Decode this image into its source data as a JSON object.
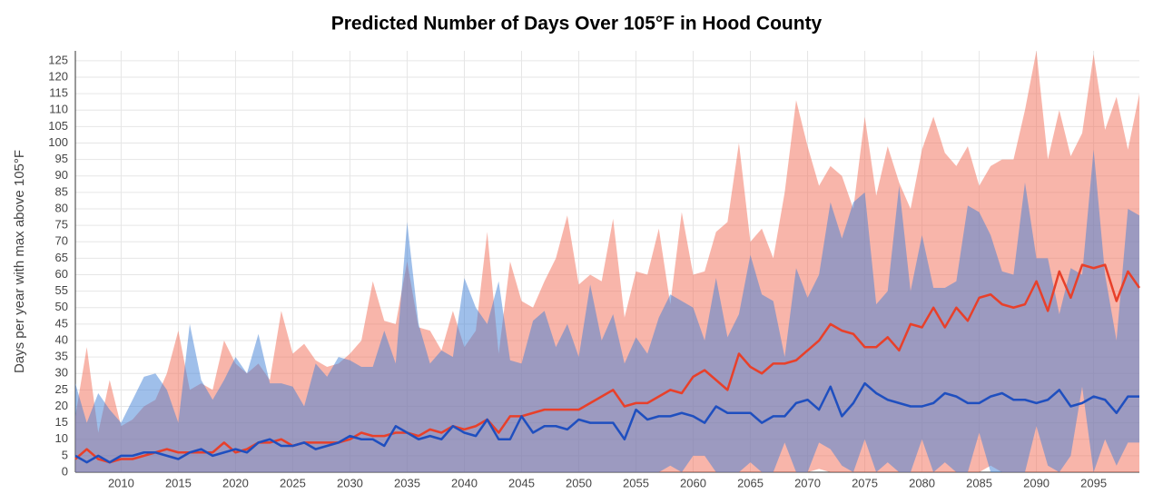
{
  "chart_data": {
    "type": "line",
    "title": "Predicted Number of Days Over 105°F in Hood County",
    "y_label": "Days per year with max above 105°F",
    "x": [
      2006,
      2007,
      2008,
      2009,
      2010,
      2011,
      2012,
      2013,
      2014,
      2015,
      2016,
      2017,
      2018,
      2019,
      2020,
      2021,
      2022,
      2023,
      2024,
      2025,
      2026,
      2027,
      2028,
      2029,
      2030,
      2031,
      2032,
      2033,
      2034,
      2035,
      2036,
      2037,
      2038,
      2039,
      2040,
      2041,
      2042,
      2043,
      2044,
      2045,
      2046,
      2047,
      2048,
      2049,
      2050,
      2051,
      2052,
      2053,
      2054,
      2055,
      2056,
      2057,
      2058,
      2059,
      2060,
      2061,
      2062,
      2063,
      2064,
      2065,
      2066,
      2067,
      2068,
      2069,
      2070,
      2071,
      2072,
      2073,
      2074,
      2075,
      2076,
      2077,
      2078,
      2079,
      2080,
      2081,
      2082,
      2083,
      2084,
      2085,
      2086,
      2087,
      2088,
      2089,
      2090,
      2091,
      2092,
      2093,
      2094,
      2095,
      2096,
      2097,
      2098,
      2099
    ],
    "xlim": [
      2006,
      2099
    ],
    "xticks": [
      2010,
      2015,
      2020,
      2025,
      2030,
      2035,
      2040,
      2045,
      2050,
      2055,
      2060,
      2065,
      2070,
      2075,
      2080,
      2085,
      2090,
      2095
    ],
    "ylim": [
      0,
      128
    ],
    "yticks": [
      0,
      5,
      10,
      15,
      20,
      25,
      30,
      35,
      40,
      45,
      50,
      55,
      60,
      65,
      70,
      75,
      80,
      85,
      90,
      95,
      100,
      105,
      110,
      115,
      120,
      125
    ],
    "grid": true,
    "bands": [
      {
        "color": "#f26b55",
        "upper": [
          17,
          38,
          12,
          28,
          14,
          16,
          20,
          22,
          30,
          43,
          25,
          27,
          25,
          40,
          33,
          30,
          33,
          28,
          49,
          36,
          39,
          34,
          32,
          33,
          36,
          40,
          58,
          46,
          45,
          64,
          44,
          43,
          37,
          49,
          38,
          43,
          73,
          36,
          64,
          52,
          50,
          58,
          65,
          78,
          57,
          60,
          58,
          77,
          47,
          61,
          60,
          74,
          51,
          79,
          60,
          61,
          73,
          76,
          100,
          70,
          74,
          65,
          85,
          113,
          99,
          87,
          93,
          90,
          80,
          108,
          84,
          99,
          88,
          80,
          98,
          108,
          97,
          93,
          99,
          87,
          93,
          95,
          95,
          110,
          128,
          95,
          110,
          96,
          103,
          127,
          104,
          114,
          98,
          115
        ],
        "lower": [
          0,
          0,
          0,
          0,
          0,
          0,
          0,
          0,
          0,
          0,
          0,
          0,
          0,
          0,
          0,
          0,
          0,
          0,
          0,
          0,
          0,
          0,
          0,
          0,
          0,
          0,
          0,
          0,
          0,
          0,
          0,
          0,
          0,
          0,
          0,
          0,
          0,
          0,
          0,
          0,
          0,
          0,
          0,
          0,
          0,
          0,
          0,
          0,
          0,
          0,
          0,
          0,
          0,
          0,
          0,
          0,
          0,
          0,
          0,
          0,
          0,
          0,
          0,
          0,
          0,
          1,
          0,
          0,
          0,
          0,
          0,
          0,
          0,
          0,
          0,
          0,
          0,
          0,
          0,
          0,
          2,
          0,
          0,
          0,
          0,
          0,
          0,
          0,
          0,
          0,
          0,
          0,
          0,
          0
        ]
      },
      {
        "color": "#3f7fd6",
        "upper": [
          27,
          15,
          24,
          19,
          15,
          22,
          29,
          30,
          25,
          15,
          45,
          28,
          22,
          28,
          35,
          30,
          42,
          27,
          27,
          26,
          20,
          33,
          29,
          35,
          34,
          32,
          32,
          43,
          33,
          76,
          45,
          33,
          37,
          35,
          59,
          50,
          45,
          58,
          34,
          33,
          46,
          49,
          38,
          45,
          35,
          57,
          40,
          48,
          33,
          41,
          36,
          47,
          54,
          52,
          50,
          40,
          59,
          41,
          48,
          66,
          54,
          52,
          35,
          62,
          53,
          60,
          82,
          71,
          82,
          85,
          51,
          55,
          87,
          55,
          72,
          56,
          56,
          58,
          81,
          79,
          72,
          61,
          60,
          88,
          65,
          65,
          48,
          62,
          60,
          98,
          60,
          40,
          80,
          78
        ],
        "lower": [
          0,
          0,
          0,
          0,
          0,
          0,
          0,
          0,
          0,
          0,
          0,
          0,
          0,
          0,
          0,
          0,
          0,
          0,
          0,
          0,
          0,
          0,
          0,
          0,
          0,
          0,
          0,
          0,
          0,
          0,
          0,
          0,
          0,
          0,
          0,
          0,
          0,
          0,
          0,
          0,
          0,
          0,
          0,
          0,
          0,
          0,
          0,
          0,
          0,
          0,
          0,
          0,
          2,
          0,
          5,
          5,
          0,
          0,
          0,
          3,
          0,
          0,
          9,
          0,
          0,
          9,
          7,
          2,
          0,
          10,
          0,
          3,
          0,
          0,
          10,
          0,
          3,
          0,
          0,
          12,
          0,
          0,
          0,
          0,
          14,
          2,
          0,
          5,
          26,
          0,
          10,
          2,
          9,
          9
        ]
      }
    ],
    "series": [
      {
        "color": "#e8402a",
        "values": [
          4,
          7,
          4,
          3,
          4,
          4,
          5,
          6,
          7,
          6,
          6,
          6,
          6,
          9,
          6,
          7,
          9,
          9,
          10,
          8,
          9,
          9,
          9,
          9,
          10,
          12,
          11,
          11,
          12,
          12,
          11,
          13,
          12,
          14,
          13,
          14,
          16,
          12,
          17,
          17,
          18,
          19,
          19,
          19,
          19,
          21,
          23,
          25,
          20,
          21,
          21,
          23,
          25,
          24,
          29,
          31,
          28,
          25,
          36,
          32,
          30,
          33,
          33,
          34,
          37,
          40,
          45,
          43,
          42,
          38,
          38,
          41,
          37,
          45,
          44,
          50,
          44,
          50,
          46,
          53,
          54,
          51,
          50,
          51,
          58,
          49,
          61,
          53,
          63,
          62,
          63,
          52,
          61,
          56
        ]
      },
      {
        "color": "#1f4fbf",
        "values": [
          5,
          3,
          5,
          3,
          5,
          5,
          6,
          6,
          5,
          4,
          6,
          7,
          5,
          6,
          7,
          6,
          9,
          10,
          8,
          8,
          9,
          7,
          8,
          9,
          11,
          10,
          10,
          8,
          14,
          12,
          10,
          11,
          10,
          14,
          12,
          11,
          16,
          10,
          10,
          17,
          12,
          14,
          14,
          13,
          16,
          15,
          15,
          15,
          10,
          19,
          16,
          17,
          17,
          18,
          17,
          15,
          20,
          18,
          18,
          18,
          15,
          17,
          17,
          21,
          22,
          19,
          26,
          17,
          21,
          27,
          24,
          22,
          21,
          20,
          20,
          21,
          24,
          23,
          21,
          21,
          23,
          24,
          22,
          22,
          21,
          22,
          25,
          20,
          21,
          23,
          22,
          18,
          23,
          23
        ]
      }
    ]
  }
}
